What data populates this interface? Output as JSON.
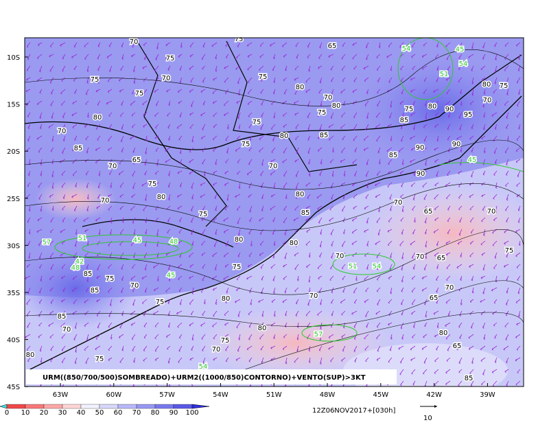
{
  "map": {
    "lat_labels": [
      "10S",
      "15S",
      "20S",
      "25S",
      "30S",
      "35S",
      "40S",
      "45S"
    ],
    "lon_labels": [
      "63W",
      "60W",
      "57W",
      "54W",
      "51W",
      "48W",
      "45W",
      "42W",
      "39W"
    ],
    "caption": "URM((850/700/500)SOMBREADO)+URM2((1000/850)CONTORNO)+VENTO(SUP)>3KT",
    "black_contour_labels": [
      "70",
      "75",
      "65",
      "75",
      "70",
      "75",
      "75",
      "80",
      "75",
      "70",
      "80",
      "75",
      "80",
      "75",
      "70",
      "85",
      "80",
      "85",
      "75",
      "65",
      "70",
      "70",
      "75",
      "80",
      "70",
      "80",
      "75",
      "85",
      "70",
      "65",
      "70",
      "80",
      "80",
      "75",
      "70",
      "70",
      "65",
      "75",
      "85",
      "75",
      "85",
      "70",
      "75",
      "80",
      "70",
      "70",
      "65",
      "80",
      "75",
      "70",
      "75",
      "80",
      "80",
      "65",
      "85",
      "85",
      "70",
      "90",
      "90",
      "90",
      "85",
      "85",
      "95",
      "90",
      "80",
      "75",
      "70",
      "80",
      "75"
    ],
    "green_contour_labels": [
      "54",
      "45",
      "54",
      "51",
      "45",
      "57",
      "51",
      "45",
      "48",
      "42",
      "48",
      "45",
      "51",
      "54",
      "57",
      "54"
    ]
  },
  "colorbar": {
    "labels": [
      0,
      10,
      20,
      30,
      40,
      50,
      60,
      70,
      80,
      90,
      100
    ]
  },
  "timestamp": "12Z06NOV2017+[030h]",
  "vector_scale": "10"
}
